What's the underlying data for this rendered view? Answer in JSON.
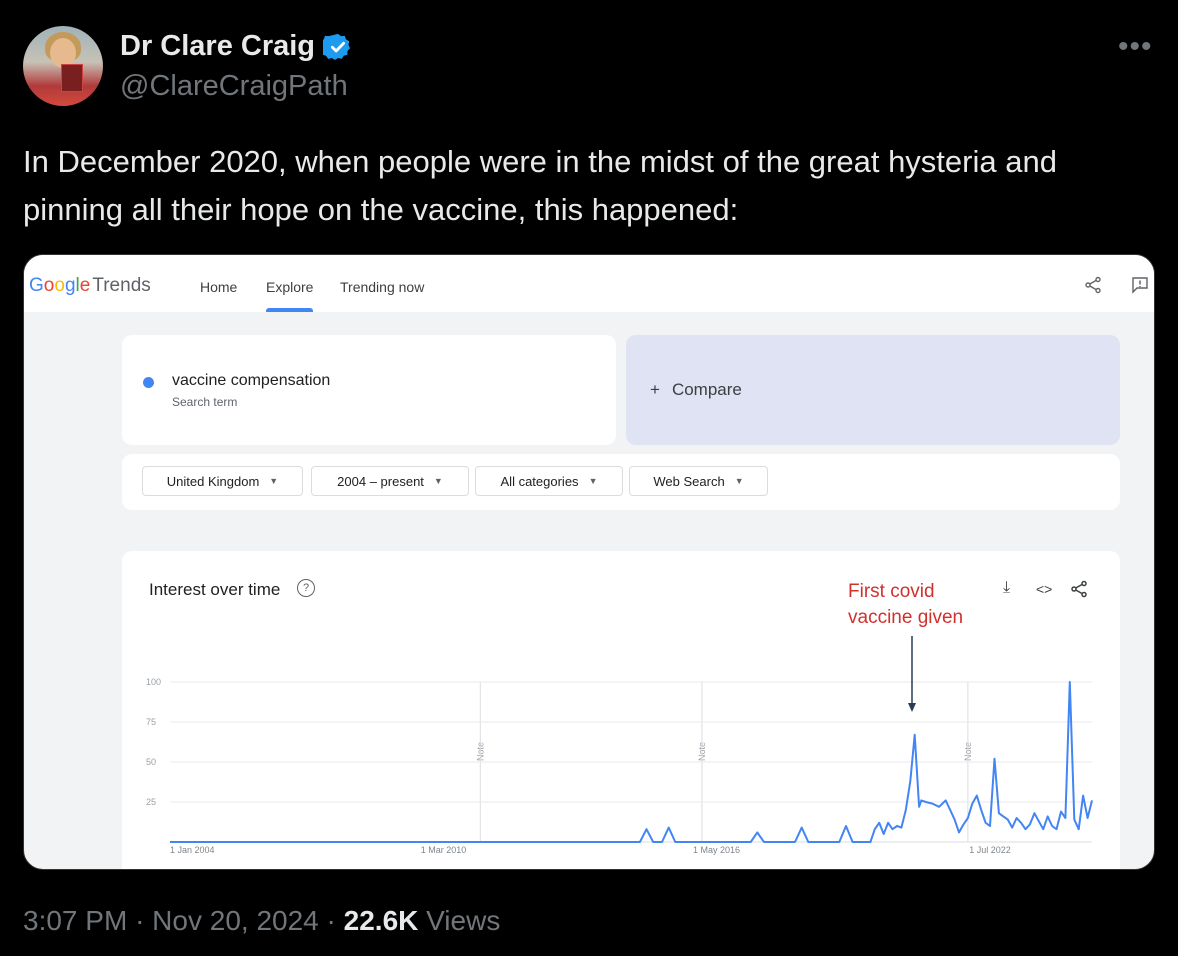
{
  "tweet": {
    "author_name": "Dr Clare Craig",
    "handle": "@ClareCraigPath",
    "more_icon": "more-horizontal-icon",
    "text": "In December 2020, when people were in the midst of the great hysteria and pinning all their hope on the vaccine, this happened:",
    "time": "3:07 PM",
    "date": "Nov 20, 2024",
    "views_count": "22.6K",
    "views_label": "Views",
    "separator": "·",
    "verified_color": "#1d9bf0"
  },
  "google_trends": {
    "logo_letters": [
      "G",
      "o",
      "o",
      "g",
      "l",
      "e"
    ],
    "logo_suffix": "Trends",
    "nav": [
      "Home",
      "Explore",
      "Trending now"
    ],
    "active_nav": "Explore",
    "search_term": "vaccine compensation",
    "search_term_sub": "Search term",
    "compare_label": "Compare",
    "compare_icon": "plus-icon",
    "filters": [
      "United Kingdom",
      "2004 – present",
      "All categories",
      "Web Search"
    ],
    "header_icons": [
      "share-icon",
      "feedback-icon"
    ],
    "chart_icons": [
      "download-icon",
      "embed-icon",
      "share-icon"
    ],
    "series_color": "#4285f4"
  },
  "chart_data": {
    "type": "line",
    "title": "Interest over time",
    "annotation": [
      "First covid",
      "vaccine given"
    ],
    "annotation_color": "#d0312d",
    "ylim": [
      0,
      100
    ],
    "yticks": [
      100,
      75,
      50,
      25
    ],
    "xtick_labels": [
      "1 Jan 2004",
      "1 Mar 2010",
      "1 May 2016",
      "1 Jul 2022"
    ],
    "note_label": "Note",
    "note_dates": [
      "2011.0",
      "2016.0",
      "2022.0"
    ],
    "grid": true,
    "series": [
      {
        "x": [
          2004.0,
          2014.6,
          2014.75,
          2014.9,
          2015.1,
          2015.25,
          2015.4,
          2015.9,
          2017.1,
          2017.25,
          2017.4,
          2018.1,
          2018.25,
          2018.4,
          2019.1,
          2019.25,
          2019.4,
          2019.6,
          2019.8,
          2019.9,
          2020.0,
          2020.1,
          2020.2,
          2020.3,
          2020.4,
          2020.5,
          2020.6,
          2020.7,
          2020.8,
          2020.9,
          2020.95,
          2021.05,
          2021.2,
          2021.35,
          2021.5,
          2021.6,
          2021.7,
          2021.8,
          2021.9,
          2022.0,
          2022.1,
          2022.2,
          2022.3,
          2022.4,
          2022.5,
          2022.6,
          2022.7,
          2022.8,
          2022.9,
          2023.0,
          2023.1,
          2023.2,
          2023.3,
          2023.4,
          2023.5,
          2023.6,
          2023.7,
          2023.8,
          2023.9,
          2024.0,
          2024.1,
          2024.2,
          2024.3,
          2024.4,
          2024.5,
          2024.6,
          2024.7,
          2024.8
        ],
        "y": [
          0,
          0,
          8,
          0,
          0,
          9,
          0,
          0,
          0,
          6,
          0,
          0,
          9,
          0,
          0,
          10,
          0,
          0,
          0,
          8,
          12,
          5,
          12,
          8,
          10,
          9,
          20,
          38,
          67,
          22,
          26,
          25,
          24,
          22,
          26,
          20,
          14,
          6,
          11,
          15,
          24,
          29,
          20,
          12,
          10,
          52,
          18,
          16,
          14,
          9,
          15,
          12,
          8,
          11,
          18,
          13,
          8,
          16,
          10,
          8,
          19,
          15,
          100,
          14,
          8,
          29,
          15,
          26
        ]
      }
    ]
  }
}
